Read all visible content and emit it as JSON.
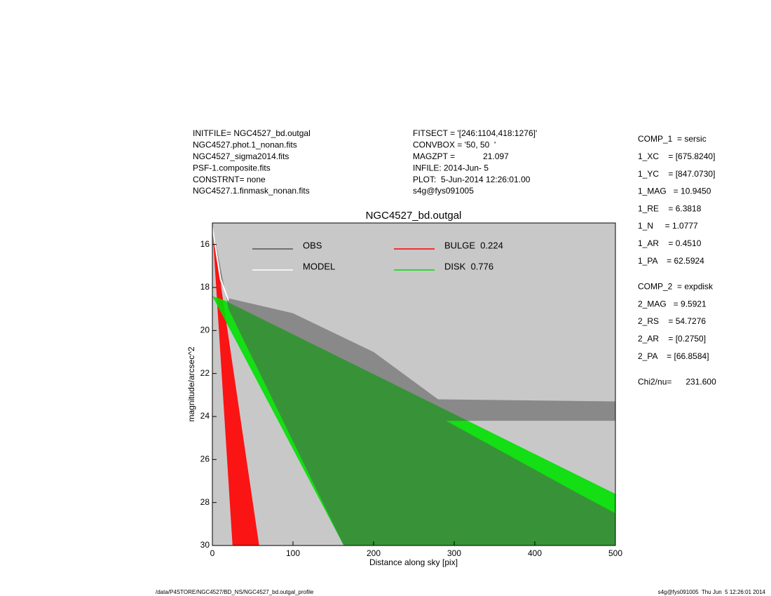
{
  "chart_data": {
    "type": "polygon",
    "title": "NGC4527_bd.outgal",
    "xlabel": "Distance along sky [pix]",
    "ylabel": "magnitude/arcsec^2",
    "xlim": [
      0,
      500
    ],
    "ylim": [
      15,
      30
    ],
    "y_inverted": true,
    "xticks": [
      0,
      100,
      200,
      300,
      400,
      500
    ],
    "yticks": [
      16,
      18,
      20,
      22,
      24,
      26,
      28,
      30
    ],
    "background": "#c8c8c8",
    "series": [
      {
        "name": "BULGE  0.224",
        "color": "#ff0000",
        "shape": "polygon",
        "x": [
          0,
          25,
          58
        ],
        "values": [
          15.2,
          30,
          30
        ]
      },
      {
        "name": "DISK  0.776",
        "color": "#00e000",
        "shape": "polygon",
        "x": [
          0,
          15,
          500,
          500,
          163
        ],
        "values": [
          18.4,
          18.6,
          27.6,
          30,
          30
        ]
      },
      {
        "name": "OBS",
        "color": "#555555",
        "shape": "polygon",
        "x": [
          0,
          10,
          20,
          100,
          200,
          280,
          500,
          500,
          290,
          450,
          500,
          500,
          163,
          20
        ],
        "values": [
          15.1,
          17.8,
          18.5,
          19.2,
          21.0,
          23.2,
          23.3,
          24.2,
          24.2,
          27.5,
          28.5,
          30,
          30,
          19.0
        ]
      },
      {
        "name": "MODEL",
        "color": "#ffffff",
        "shape": "line",
        "x": [
          0,
          10,
          20
        ],
        "values": [
          15.2,
          17.6,
          18.6
        ]
      }
    ],
    "header_left": [
      "INITFILE= NGC4527_bd.outgal",
      "NGC4527.phot.1_nonan.fits",
      "NGC4527_sigma2014.fits",
      "PSF-1.composite.fits",
      "CONSTRNT= none",
      "NGC4527.1.finmask_nonan.fits"
    ],
    "header_middle": [
      "FITSECT = '[246:1104,418:1276]'",
      "CONVBOX = '50, 50  '",
      "MAGZPT =            21.097",
      "INFILE: 2014-Jun- 5",
      "PLOT:  5-Jun-2014 12:26:01.00",
      "s4g@fys091005"
    ],
    "header_right": [
      "COMP_1  = sersic",
      "1_XC    = [675.8240]",
      "1_YC    = [847.0730]",
      "1_MAG   = 10.9450",
      "1_RE    = 6.3818",
      "1_N     = 1.0777",
      "1_AR    = 0.4510",
      "1_PA    = 62.5924",
      "COMP_2  = expdisk",
      "2_MAG   = 9.5921",
      "2_RS    = 54.7276",
      "2_AR    = [0.2750]",
      "2_PA    = [66.8584]",
      "Chi2/nu=      231.600"
    ],
    "footer_left": "/data/P4STORE/NGC4527/BD_NS/NGC4527_bd.outgal_profile",
    "footer_right": "s4g@fys091005  Thu Jun  5 12:26:01 2014"
  }
}
